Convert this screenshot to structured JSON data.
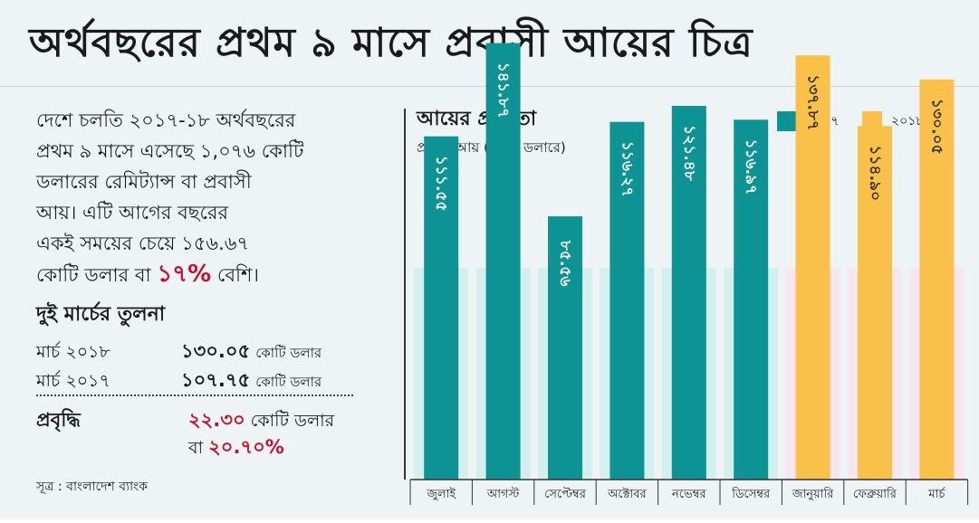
{
  "page_title": "অর্থবছরের প্রথম ৯ মাসে প্রবাসী আয়ের চিত্র",
  "summary": {
    "line1": "দেশে চলতি ২০১৭-১৮ অর্থবছরের",
    "line2": "প্রথম ৯ মাসে এসেছে ১,০৭৬ কোটি",
    "line3": "ডলারের রেমিট্যান্স বা প্রবাসী",
    "line4": "আয়। এটি আগের বছরের",
    "line5": "একই সময়ের  চেয়ে ১৫৬.৬৭",
    "line6_pre": "কোটি ডলার বা ",
    "line6_highlight": "১৭%",
    "line6_post": " বেশি।"
  },
  "comparison": {
    "title": "দুই মার্চের তুলনা",
    "rows": [
      {
        "label": "মার্চ ২০১৮",
        "value": "১৩০.০৫",
        "unit": "কোটি ডলার"
      },
      {
        "label": "মার্চ ২০১৭",
        "value": "১০৭.৭৫",
        "unit": "কোটি ডলার"
      }
    ],
    "growth_label": "প্রবৃদ্ধি",
    "growth_value": "২২.৩০",
    "growth_unit": "কোটি ডলার",
    "growth_pct_prefix": "বা",
    "growth_pct": "২০.৭০%"
  },
  "source": "সূত্র : বাংলাদেশ ব্যাংক",
  "colors": {
    "series_2017": "#0e9394",
    "series_2018": "#f9c04a",
    "highlight_red": "#c8102e"
  },
  "chart_data": {
    "type": "bar",
    "title": "আয়ের প্রবণতা",
    "ylabel": "প্রবাসী আয় (কোটি ডলারে)",
    "xlabel": "",
    "categories": [
      "জুলাই",
      "আগস্ট",
      "সেপ্টেম্বর",
      "অক্টোবর",
      "নভেম্বর",
      "ডিসেম্বর",
      "জানুয়ারি",
      "ফেব্রুয়ারি",
      "মার্চ"
    ],
    "values": [
      111.55,
      141.87,
      85.56,
      116.27,
      121.48,
      116.97,
      137.87,
      114.9,
      130.05
    ],
    "labels": [
      "১১১.৫৫",
      "১৪১.৮৭",
      "৮৫.৫৬",
      "১১৬.২৭",
      "১২১.৪৮",
      "১১৬.৯৭",
      "১৩৭.৮৭",
      "১১৪.৯০",
      "১৩০.০৫"
    ],
    "series_of_bar": [
      "2017",
      "2017",
      "2017",
      "2017",
      "2017",
      "2017",
      "2018",
      "2018",
      "2018"
    ],
    "legend": [
      {
        "name": "২০১৭",
        "key": "2017"
      },
      {
        "name": "২০১৮",
        "key": "2018"
      }
    ],
    "ylim": [
      0,
      150
    ],
    "grid": false,
    "legend_position": "top-right"
  }
}
